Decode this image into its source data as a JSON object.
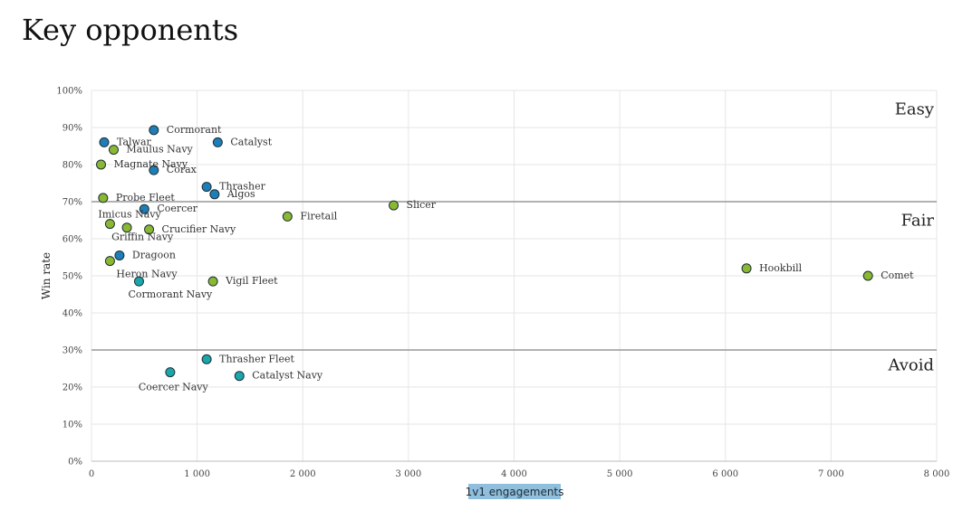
{
  "page": {
    "title": "Key opponents"
  },
  "chart_data": {
    "type": "scatter",
    "xlabel": "1v1 engagements",
    "ylabel": "Win rate",
    "xlim": [
      0,
      8000
    ],
    "ylim": [
      0,
      100
    ],
    "x_ticks": [
      0,
      1000,
      2000,
      3000,
      4000,
      5000,
      6000,
      7000,
      8000
    ],
    "x_tick_labels": [
      "0",
      "1 000",
      "2 000",
      "3 000",
      "4 000",
      "5 000",
      "6 000",
      "7 000",
      "8 000"
    ],
    "y_ticks": [
      0,
      10,
      20,
      30,
      40,
      50,
      60,
      70,
      80,
      90,
      100
    ],
    "y_tick_labels": [
      "0%",
      "10%",
      "20%",
      "30%",
      "40%",
      "50%",
      "60%",
      "70%",
      "80%",
      "90%",
      "100%"
    ],
    "grid": true,
    "thresholds": [
      70,
      30
    ],
    "zones": [
      {
        "label": "Easy",
        "y": 95
      },
      {
        "label": "Fair",
        "y": 65
      },
      {
        "label": "Avoid",
        "y": 26
      }
    ],
    "colors": {
      "blue": "#1e7fb8",
      "green": "#8ab833",
      "teal": "#1aa7ac",
      "outline": "#1d2d33",
      "threshold": "#999999",
      "grid": "#e6e6e6"
    },
    "points": [
      {
        "name": "Cormorant",
        "x": 590,
        "y": 89.3,
        "color": "blue"
      },
      {
        "name": "Talwar",
        "x": 120,
        "y": 86,
        "color": "blue"
      },
      {
        "name": "Catalyst",
        "x": 1195,
        "y": 86,
        "color": "blue"
      },
      {
        "name": "Maulus Navy",
        "x": 210,
        "y": 84,
        "color": "green"
      },
      {
        "name": "Magnate Navy",
        "x": 90,
        "y": 80,
        "color": "green"
      },
      {
        "name": "Corax",
        "x": 590,
        "y": 78.5,
        "color": "blue"
      },
      {
        "name": "Thrasher",
        "x": 1090,
        "y": 74,
        "color": "blue"
      },
      {
        "name": "Algos",
        "x": 1165,
        "y": 72,
        "color": "blue"
      },
      {
        "name": "Probe Fleet",
        "x": 110,
        "y": 71,
        "color": "green"
      },
      {
        "name": "Slicer",
        "x": 2860,
        "y": 69,
        "color": "green"
      },
      {
        "name": "Coercer",
        "x": 500,
        "y": 68,
        "color": "blue"
      },
      {
        "name": "Firetail",
        "x": 1855,
        "y": 66,
        "color": "green"
      },
      {
        "name": "Imicus Navy",
        "x": 175,
        "y": 64,
        "color": "green"
      },
      {
        "name": "Griffin Navy",
        "x": 335,
        "y": 63,
        "color": "green"
      },
      {
        "name": "Crucifier Navy",
        "x": 545,
        "y": 62.5,
        "color": "green"
      },
      {
        "name": "Dragoon",
        "x": 265,
        "y": 55.5,
        "color": "blue"
      },
      {
        "name": "Heron Navy",
        "x": 175,
        "y": 54,
        "color": "green"
      },
      {
        "name": "Hookbill",
        "x": 6200,
        "y": 52,
        "color": "green"
      },
      {
        "name": "Comet",
        "x": 7350,
        "y": 50,
        "color": "green"
      },
      {
        "name": "Vigil Fleet",
        "x": 1150,
        "y": 48.5,
        "color": "green"
      },
      {
        "name": "Cormorant Navy",
        "x": 450,
        "y": 48.5,
        "color": "teal"
      },
      {
        "name": "Thrasher Fleet",
        "x": 1090,
        "y": 27.5,
        "color": "teal"
      },
      {
        "name": "Coercer Navy",
        "x": 745,
        "y": 24,
        "color": "teal"
      },
      {
        "name": "Catalyst Navy",
        "x": 1400,
        "y": 23,
        "color": "teal"
      }
    ]
  }
}
